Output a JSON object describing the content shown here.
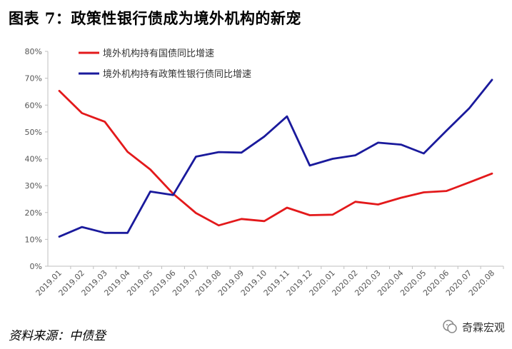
{
  "title": "图表 7：政策性银行债成为境外机构的新宠",
  "source": "资料来源：中债登",
  "watermark": "奇霖宏观",
  "colors": {
    "red": "#e3191b",
    "blue": "#1a1a9c",
    "axis": "#bfbfbf"
  },
  "chart_data": {
    "type": "line",
    "categories": [
      "2019.01",
      "2019.02",
      "2019.03",
      "2019.04",
      "2019.05",
      "2019.06",
      "2019.07",
      "2019.08",
      "2019.09",
      "2019.10",
      "2019.11",
      "2019.12",
      "2020.01",
      "2020.02",
      "2020.03",
      "2020.04",
      "2020.05",
      "2020.06",
      "2020.07",
      "2020.08"
    ],
    "y_ticks": [
      "0%",
      "10%",
      "20%",
      "30%",
      "40%",
      "50%",
      "60%",
      "70%",
      "80%"
    ],
    "ylim": [
      0,
      80
    ],
    "grid": false,
    "legend_position": "top-left",
    "series": [
      {
        "name": "境外机构持有国债同比增速",
        "color": "#e3191b",
        "values": [
          65.3,
          57.0,
          53.8,
          42.6,
          36.0,
          27.0,
          19.8,
          15.2,
          17.6,
          16.8,
          21.8,
          19.0,
          19.2,
          24.0,
          23.0,
          25.5,
          27.5,
          28.0,
          31.2,
          34.5
        ]
      },
      {
        "name": "境外机构持有政策性银行债同比增速",
        "color": "#1a1a9c",
        "values": [
          11.0,
          14.6,
          12.4,
          12.4,
          27.8,
          26.5,
          40.8,
          42.5,
          42.3,
          48.3,
          55.8,
          37.5,
          40.0,
          41.3,
          46.0,
          45.3,
          42.0,
          50.5,
          58.8,
          69.4
        ]
      }
    ]
  }
}
